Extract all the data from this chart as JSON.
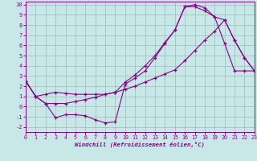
{
  "bg_color": "#c8e8e8",
  "line_color": "#880088",
  "grid_color": "#99bbbb",
  "xlim": [
    0,
    23
  ],
  "ylim": [
    -2.5,
    10.3
  ],
  "xticks": [
    0,
    1,
    2,
    3,
    4,
    5,
    6,
    7,
    8,
    9,
    10,
    11,
    12,
    13,
    14,
    15,
    16,
    17,
    18,
    19,
    20,
    21,
    22,
    23
  ],
  "yticks": [
    -2,
    -1,
    0,
    1,
    2,
    3,
    4,
    5,
    6,
    7,
    8,
    9,
    10
  ],
  "xlabel": "Windchill (Refroidissement éolien,°C)",
  "line1_x": [
    0,
    1,
    2,
    3,
    4,
    5,
    6,
    7,
    8,
    9,
    10,
    11,
    12,
    13,
    14,
    15,
    16,
    17,
    18,
    19,
    20,
    21,
    22,
    23
  ],
  "line1_y": [
    2.5,
    1.0,
    0.3,
    -1.1,
    -0.8,
    -0.8,
    -0.9,
    -1.3,
    -1.6,
    -1.5,
    2.2,
    2.8,
    3.5,
    4.8,
    6.2,
    7.5,
    9.8,
    10.0,
    9.7,
    8.8,
    6.2,
    3.5,
    3.5,
    3.5
  ],
  "line2_x": [
    0,
    1,
    2,
    3,
    4,
    5,
    6,
    7,
    8,
    9,
    10,
    11,
    12,
    13,
    14,
    15,
    16,
    17,
    18,
    19,
    20,
    21,
    22,
    23
  ],
  "line2_y": [
    2.5,
    1.0,
    1.2,
    1.4,
    1.3,
    1.2,
    1.2,
    1.2,
    1.2,
    1.4,
    2.4,
    3.1,
    4.0,
    5.0,
    6.3,
    7.5,
    9.8,
    9.8,
    9.4,
    8.8,
    8.5,
    6.5,
    4.8,
    3.5
  ],
  "line3_x": [
    0,
    1,
    2,
    3,
    4,
    5,
    6,
    7,
    8,
    9,
    10,
    11,
    12,
    13,
    14,
    15,
    16,
    17,
    18,
    19,
    20,
    21,
    22,
    23
  ],
  "line3_y": [
    2.5,
    1.0,
    0.3,
    0.3,
    0.3,
    0.5,
    0.7,
    0.9,
    1.2,
    1.4,
    1.7,
    2.0,
    2.4,
    2.8,
    3.2,
    3.6,
    4.5,
    5.5,
    6.5,
    7.4,
    8.5,
    6.5,
    4.8,
    3.5
  ]
}
